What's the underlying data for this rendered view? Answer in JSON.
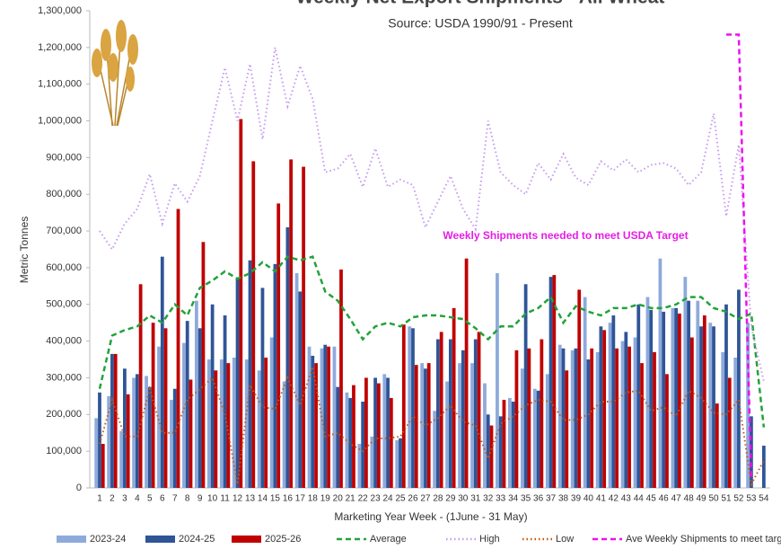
{
  "chart_data": {
    "type": "bar",
    "title": "Weekly Net Export Shipments - All Wheat",
    "subtitle": "Source: USDA 1990/91 - Present",
    "annotation": "Weekly Shipments needed to meet USDA Target",
    "y_label": "Metric Tonnes",
    "x_label": "Marketing Year Week - (1June - 31 May)",
    "categories": [
      "1",
      "2",
      "3",
      "4",
      "5",
      "6",
      "7",
      "8",
      "9",
      "10",
      "11",
      "12",
      "13",
      "14",
      "15",
      "16",
      "17",
      "18",
      "19",
      "20",
      "21",
      "22",
      "23",
      "24",
      "25",
      "26",
      "27",
      "28",
      "29",
      "30",
      "31",
      "32",
      "33",
      "34",
      "35",
      "36",
      "37",
      "38",
      "39",
      "40",
      "41",
      "42",
      "43",
      "44",
      "45",
      "46",
      "47",
      "48",
      "49",
      "50",
      "51",
      "52",
      "53",
      "54"
    ],
    "ylim": [
      0,
      1300000
    ],
    "yticks": [
      {
        "value": 0,
        "label": "0"
      },
      {
        "value": 100000,
        "label": "100,000"
      },
      {
        "value": 200000,
        "label": "200,000"
      },
      {
        "value": 300000,
        "label": "300,000"
      },
      {
        "value": 400000,
        "label": "400,000"
      },
      {
        "value": 500000,
        "label": "500,000"
      },
      {
        "value": 600000,
        "label": "600,000"
      },
      {
        "value": 700000,
        "label": "700,000"
      },
      {
        "value": 800000,
        "label": "800,000"
      },
      {
        "value": 900000,
        "label": "900,000"
      },
      {
        "value": 1000000,
        "label": "1,000,000"
      },
      {
        "value": 1100000,
        "label": "1,100,000"
      },
      {
        "value": 1200000,
        "label": "1,200,000"
      },
      {
        "value": 1300000,
        "label": "1,300,000"
      }
    ],
    "series": [
      {
        "name": "2023-24",
        "type": "bar",
        "color": "#8eaadb",
        "values": [
          190000,
          250000,
          155000,
          300000,
          305000,
          385000,
          240000,
          395000,
          510000,
          350000,
          350000,
          355000,
          350000,
          320000,
          410000,
          290000,
          585000,
          385000,
          380000,
          385000,
          260000,
          120000,
          140000,
          310000,
          130000,
          440000,
          340000,
          210000,
          290000,
          340000,
          340000,
          285000,
          585000,
          245000,
          325000,
          270000,
          310000,
          390000,
          375000,
          520000,
          370000,
          450000,
          400000,
          410000,
          520000,
          625000,
          490000,
          575000,
          510000,
          450000,
          370000,
          355000,
          450000,
          null
        ]
      },
      {
        "name": "2024-25",
        "type": "bar",
        "color": "#2f5597",
        "values": [
          260000,
          365000,
          325000,
          310000,
          275000,
          630000,
          270000,
          455000,
          435000,
          500000,
          470000,
          570000,
          620000,
          545000,
          610000,
          710000,
          535000,
          360000,
          390000,
          275000,
          245000,
          235000,
          300000,
          300000,
          135000,
          435000,
          325000,
          405000,
          405000,
          375000,
          405000,
          200000,
          195000,
          235000,
          555000,
          265000,
          575000,
          380000,
          380000,
          350000,
          440000,
          470000,
          425000,
          500000,
          485000,
          480000,
          490000,
          510000,
          440000,
          440000,
          500000,
          540000,
          195000,
          115000
        ]
      },
      {
        "name": "2025-26",
        "type": "bar",
        "color": "#c00000",
        "values": [
          120000,
          365000,
          255000,
          555000,
          450000,
          435000,
          760000,
          295000,
          670000,
          320000,
          340000,
          1005000,
          890000,
          355000,
          775000,
          895000,
          875000,
          340000,
          385000,
          595000,
          280000,
          300000,
          285000,
          245000,
          445000,
          335000,
          340000,
          425000,
          490000,
          625000,
          425000,
          170000,
          240000,
          375000,
          380000,
          405000,
          580000,
          320000,
          540000,
          380000,
          430000,
          380000,
          385000,
          340000,
          370000,
          310000,
          475000,
          410000,
          470000,
          230000,
          300000,
          null,
          null,
          null
        ]
      },
      {
        "name": "Average",
        "type": "line",
        "dash": "dashed",
        "color": "#22a33a",
        "values": [
          270000,
          415000,
          430000,
          440000,
          470000,
          450000,
          500000,
          470000,
          545000,
          565000,
          590000,
          570000,
          585000,
          615000,
          590000,
          630000,
          620000,
          630000,
          535000,
          510000,
          460000,
          405000,
          440000,
          450000,
          440000,
          465000,
          470000,
          470000,
          465000,
          460000,
          435000,
          405000,
          440000,
          440000,
          475000,
          490000,
          520000,
          450000,
          495000,
          480000,
          470000,
          490000,
          490000,
          500000,
          490000,
          490000,
          500000,
          520000,
          520000,
          490000,
          480000,
          460000,
          475000,
          165000
        ]
      },
      {
        "name": "High",
        "type": "line",
        "dash": "dotted",
        "color": "#c59af0",
        "values": [
          700000,
          650000,
          720000,
          760000,
          855000,
          720000,
          830000,
          780000,
          850000,
          1000000,
          1145000,
          1000000,
          1155000,
          950000,
          1200000,
          1040000,
          1150000,
          1060000,
          860000,
          870000,
          910000,
          820000,
          925000,
          820000,
          840000,
          825000,
          710000,
          780000,
          850000,
          760000,
          705000,
          1000000,
          860000,
          825000,
          800000,
          885000,
          840000,
          910000,
          845000,
          825000,
          890000,
          865000,
          895000,
          860000,
          880000,
          885000,
          870000,
          825000,
          860000,
          1020000,
          740000,
          935000,
          440000,
          290000
        ]
      },
      {
        "name": "Low",
        "type": "line",
        "dash": "dotted",
        "color": "#c55a11",
        "values": [
          120000,
          240000,
          140000,
          140000,
          270000,
          150000,
          150000,
          240000,
          270000,
          300000,
          200000,
          10000,
          280000,
          220000,
          215000,
          300000,
          225000,
          330000,
          140000,
          150000,
          120000,
          100000,
          135000,
          135000,
          140000,
          195000,
          170000,
          190000,
          225000,
          180000,
          170000,
          80000,
          175000,
          195000,
          225000,
          240000,
          235000,
          185000,
          185000,
          200000,
          235000,
          235000,
          260000,
          265000,
          210000,
          220000,
          195000,
          265000,
          245000,
          205000,
          200000,
          240000,
          10000,
          75000
        ]
      },
      {
        "name": "Ave Weekly Shipments to meet target",
        "type": "line",
        "dash": "dashed",
        "color": "#ee10ee",
        "values": [
          null,
          null,
          null,
          null,
          null,
          null,
          null,
          null,
          null,
          null,
          null,
          null,
          null,
          null,
          null,
          null,
          null,
          null,
          null,
          null,
          null,
          null,
          null,
          null,
          null,
          null,
          null,
          null,
          null,
          null,
          null,
          null,
          null,
          null,
          null,
          null,
          null,
          null,
          null,
          null,
          null,
          null,
          null,
          null,
          null,
          null,
          null,
          null,
          null,
          null,
          1235000,
          1235000,
          30000,
          null
        ]
      }
    ]
  }
}
